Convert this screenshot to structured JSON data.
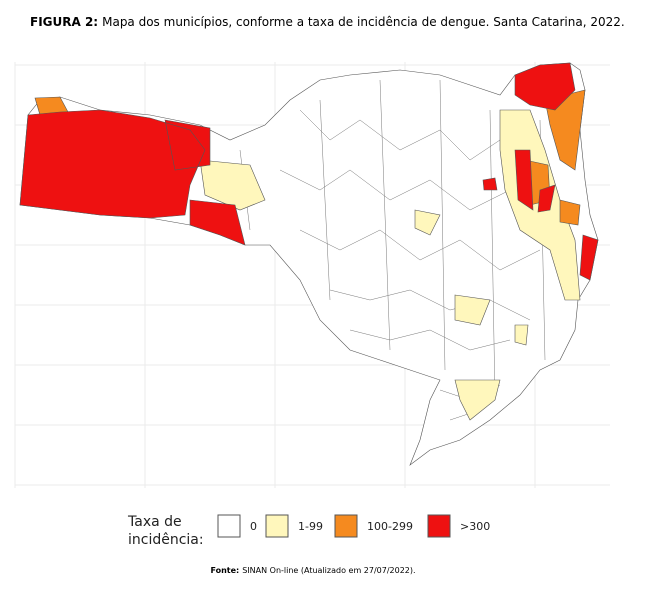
{
  "figure": {
    "caption_label": "FIGURA 2:",
    "caption": "Mapa dos municípios, conforme a taxa de incidência de dengue. Santa Catarina, 2022.",
    "legend": {
      "title": [
        "Taxa de",
        "incidência:"
      ],
      "items": [
        {
          "label": "0",
          "color": "#ffffff"
        },
        {
          "label": "1-99",
          "color": "#fff7bc"
        },
        {
          "label": "100-299",
          "color": "#f58a1f"
        },
        {
          "label": ">300",
          "color": "#ee1111"
        }
      ]
    },
    "source_label": "Fonte:",
    "source": "SINAN On-line (Atualizado em 27/07/2022)."
  }
}
